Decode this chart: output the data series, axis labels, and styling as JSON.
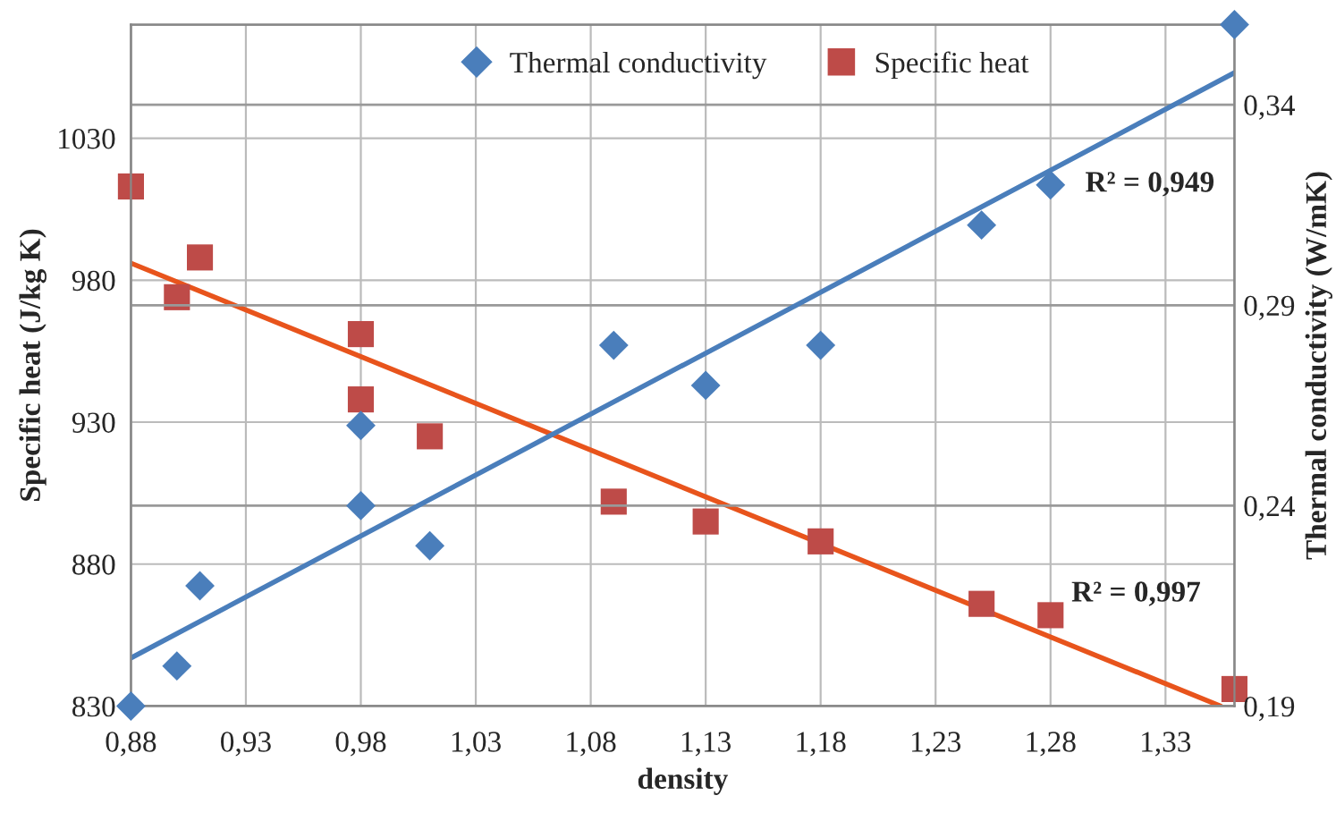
{
  "chart_data": {
    "type": "scatter",
    "xlabel": "density",
    "ylabel": "Specific heat (J/kg K)",
    "y2label": "Thermal conductivity (W/mK)",
    "xlim": [
      0.88,
      1.36
    ],
    "xticks": [
      {
        "value": 0.88,
        "label": "0,88"
      },
      {
        "value": 0.93,
        "label": "0,93"
      },
      {
        "value": 0.98,
        "label": "0,98"
      },
      {
        "value": 1.03,
        "label": "1,03"
      },
      {
        "value": 1.08,
        "label": "1,08"
      },
      {
        "value": 1.13,
        "label": "1,13"
      },
      {
        "value": 1.18,
        "label": "1,18"
      },
      {
        "value": 1.23,
        "label": "1,23"
      },
      {
        "value": 1.28,
        "label": "1,28"
      },
      {
        "value": 1.33,
        "label": "1,33"
      }
    ],
    "ylim": [
      830,
      1070
    ],
    "yticks": [
      830,
      880,
      930,
      980,
      1030
    ],
    "y2lim": [
      0.19,
      0.36
    ],
    "y2ticks": [
      {
        "value": 0.19,
        "label": "0,19"
      },
      {
        "value": 0.24,
        "label": "0,24"
      },
      {
        "value": 0.29,
        "label": "0,29"
      },
      {
        "value": 0.34,
        "label": "0,34"
      }
    ],
    "grid": true,
    "legend": "top",
    "series": [
      {
        "name": "Thermal conductivity",
        "axis": "y2",
        "color": "#4a7ebb",
        "marker": "diamond",
        "x": [
          0.88,
          0.9,
          0.91,
          0.98,
          0.98,
          1.01,
          1.09,
          1.13,
          1.18,
          1.25,
          1.28,
          1.36
        ],
        "values": [
          0.19,
          0.2,
          0.22,
          0.24,
          0.26,
          0.23,
          0.28,
          0.27,
          0.28,
          0.31,
          0.32,
          0.36
        ]
      },
      {
        "name": "Specific heat",
        "color": "#be4b48",
        "marker": "square",
        "x": [
          0.88,
          0.9,
          0.91,
          0.98,
          0.98,
          1.01,
          1.09,
          1.13,
          1.18,
          1.25,
          1.28,
          1.36
        ],
        "values": [
          1013,
          974,
          988,
          961,
          938,
          925,
          902,
          895,
          888,
          866,
          862,
          836
        ]
      },
      {
        "type": "line",
        "axis": "y2",
        "color": "#4a7ebb",
        "x": [
          0.88,
          1.36
        ],
        "values": [
          0.202,
          0.348
        ]
      },
      {
        "type": "line",
        "color": "#e8541c",
        "x": [
          0.88,
          1.354
        ],
        "values": [
          986,
          830
        ]
      }
    ],
    "annotations": [
      "R² = 0,949",
      "R² = 0,997"
    ]
  }
}
